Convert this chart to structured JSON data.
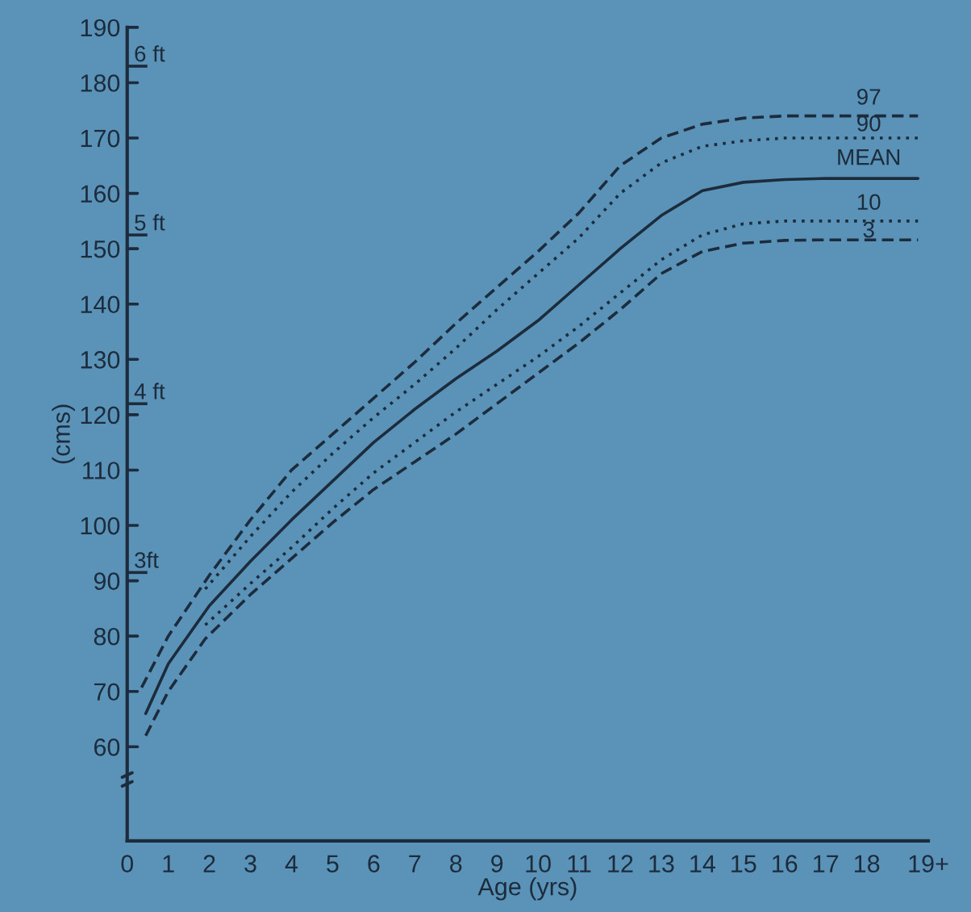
{
  "chart_data": {
    "type": "line",
    "xlabel": "Age (yrs)",
    "ylabel": "(cms)",
    "xlim": [
      0,
      19.5
    ],
    "ylim": [
      43,
      190
    ],
    "xticks": [
      0,
      1,
      2,
      3,
      4,
      5,
      6,
      7,
      8,
      9,
      10,
      11,
      12,
      13,
      14,
      15,
      16,
      17,
      18,
      {
        "value": 19.5,
        "label": "19+"
      }
    ],
    "yticks": [
      60,
      70,
      80,
      90,
      100,
      110,
      120,
      130,
      140,
      150,
      160,
      170,
      180,
      190
    ],
    "y2lim": [
      1.41,
      6.23
    ],
    "y2ticks": [
      {
        "value": 3,
        "label": "3ft"
      },
      {
        "value": 4,
        "label": "4 ft"
      },
      {
        "value": 5,
        "label": "5 ft"
      },
      {
        "value": 6,
        "label": "6 ft"
      }
    ],
    "grid": false,
    "legend": false,
    "marker": "none",
    "series": [
      {
        "name": "97",
        "color": "#1c2c3c",
        "line_style": "dashed",
        "x": [
          0.35,
          1,
          2,
          3,
          4,
          5,
          6,
          7,
          8,
          9,
          10,
          11,
          12,
          13,
          14,
          15,
          16,
          17,
          18,
          19.25
        ],
        "values": [
          70.7,
          80,
          91,
          101,
          110,
          116.5,
          123,
          129.5,
          136.5,
          143,
          149.5,
          156.5,
          165,
          170,
          172.5,
          173.6,
          174,
          174,
          174,
          174
        ]
      },
      {
        "name": "90",
        "color": "#1c2c3c",
        "line_style": "dotted",
        "x": [
          1.9,
          3,
          4,
          5,
          6,
          7,
          8,
          9,
          10,
          11,
          12,
          13,
          14,
          15,
          16,
          17,
          18,
          19.25
        ],
        "values": [
          88.5,
          98,
          106,
          113,
          119.5,
          125.5,
          132,
          139,
          145.5,
          152,
          160,
          165.5,
          168.5,
          169.5,
          170,
          170,
          170,
          170
        ]
      },
      {
        "name": "MEAN",
        "color": "#1c2c3c",
        "line_style": "solid",
        "x": [
          0.45,
          1,
          2,
          3,
          4,
          5,
          6,
          7,
          8,
          9,
          10,
          11,
          12,
          13,
          14,
          15,
          16,
          17,
          18,
          19.25
        ],
        "values": [
          66,
          75,
          85.5,
          93.5,
          101,
          108,
          115,
          121,
          126.5,
          131.5,
          137,
          143.5,
          150,
          156,
          160.5,
          162,
          162.5,
          162.7,
          162.7,
          162.7
        ]
      },
      {
        "name": "10",
        "color": "#1c2c3c",
        "line_style": "dotted",
        "x": [
          1.9,
          3,
          4,
          5,
          6,
          7,
          8,
          9,
          10,
          11,
          12,
          13,
          14,
          15,
          16,
          17,
          18,
          19.25
        ],
        "values": [
          82,
          89.5,
          96,
          103,
          109.5,
          115,
          120.5,
          125.5,
          130.5,
          136,
          142,
          148,
          152.5,
          154.5,
          155,
          155,
          155,
          155
        ]
      },
      {
        "name": "3",
        "color": "#1c2c3c",
        "line_style": "dashed",
        "x": [
          0.45,
          1,
          1.9,
          3,
          4,
          5,
          6,
          7,
          8,
          9,
          10,
          11,
          12,
          13,
          14,
          15,
          16,
          17,
          18,
          19.25
        ],
        "values": [
          62,
          70,
          79.5,
          87.5,
          94,
          100.5,
          106.5,
          111.5,
          116.5,
          122,
          127.5,
          133,
          139,
          145.5,
          149.5,
          151,
          151.5,
          151.6,
          151.6,
          151.6
        ]
      }
    ]
  }
}
